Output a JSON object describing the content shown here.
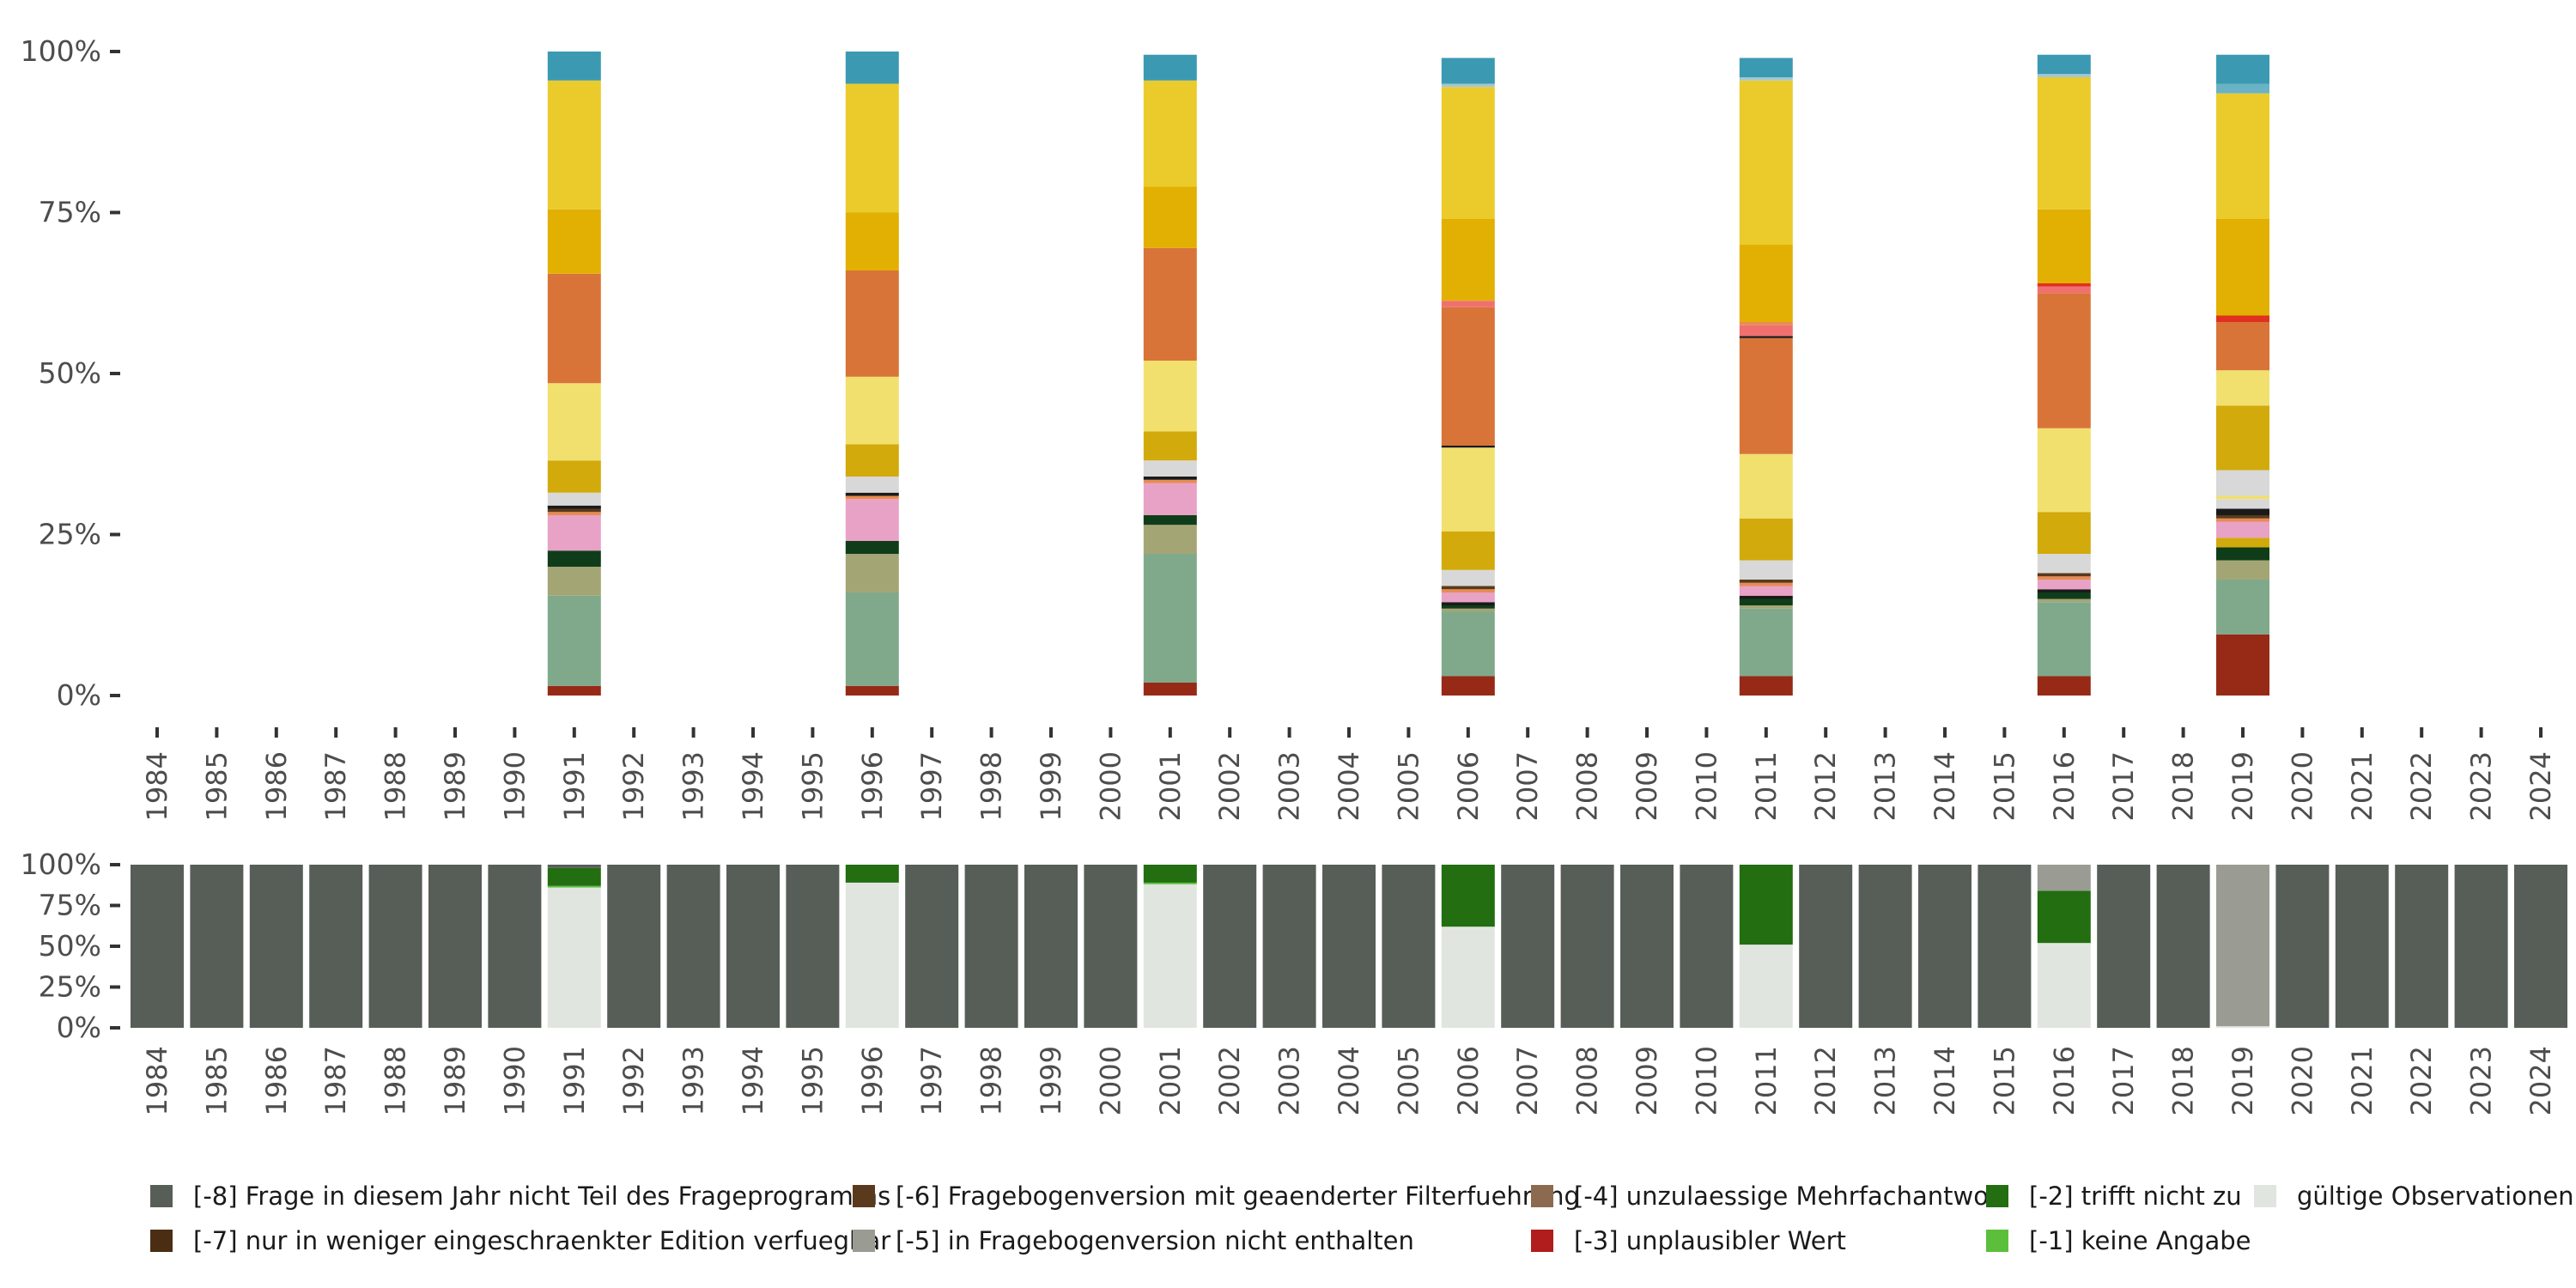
{
  "chart_data": [
    {
      "type": "bar",
      "stacked": true,
      "title": "",
      "xlabel": "",
      "ylabel": "",
      "ylim": [
        0,
        100
      ],
      "ytick_labels": [
        "0%",
        "25%",
        "50%",
        "75%",
        "100%"
      ],
      "ytick_values": [
        0,
        25,
        50,
        75,
        100
      ],
      "categories": [
        "1984",
        "1985",
        "1986",
        "1987",
        "1988",
        "1989",
        "1990",
        "1991",
        "1992",
        "1993",
        "1994",
        "1995",
        "1996",
        "1997",
        "1998",
        "1999",
        "2000",
        "2001",
        "2002",
        "2003",
        "2004",
        "2005",
        "2006",
        "2007",
        "2008",
        "2009",
        "2010",
        "2011",
        "2012",
        "2013",
        "2014",
        "2015",
        "2016",
        "2017",
        "2018",
        "2019",
        "2020",
        "2021",
        "2022",
        "2023",
        "2024"
      ],
      "note": "Distribution of valid answer categories (stacked from bottom). Segment colours listed bottom to top; values in percent.",
      "bars": [
        {
          "year": "1991",
          "segments": [
            {
              "color": "#962a17",
              "value": 1.5
            },
            {
              "color": "#80a98c",
              "value": 14
            },
            {
              "color": "#a4a575",
              "value": 4.5
            },
            {
              "color": "#0f3d1a",
              "value": 2.5
            },
            {
              "color": "#e8a2c6",
              "value": 5.5
            },
            {
              "color": "#e98b51",
              "value": 0.5
            },
            {
              "color": "#5a3a1d",
              "value": 0.5
            },
            {
              "color": "#1a1a1a",
              "value": 0.5
            },
            {
              "color": "#d8d8d8",
              "value": 2
            },
            {
              "color": "#d2aa0b",
              "value": 5
            },
            {
              "color": "#f1e06e",
              "value": 12
            },
            {
              "color": "#d97438",
              "value": 17
            },
            {
              "color": "#e2b003",
              "value": 10
            },
            {
              "color": "#ebcb2c",
              "value": 20
            },
            {
              "color": "#3b9ab2",
              "value": 4.5
            }
          ]
        },
        {
          "year": "1996",
          "segments": [
            {
              "color": "#962a17",
              "value": 1.5
            },
            {
              "color": "#80a98c",
              "value": 14.5
            },
            {
              "color": "#a4a575",
              "value": 6
            },
            {
              "color": "#0f3d1a",
              "value": 2
            },
            {
              "color": "#e8a2c6",
              "value": 6.5
            },
            {
              "color": "#e98b51",
              "value": 0.5
            },
            {
              "color": "#1a1a1a",
              "value": 0.5
            },
            {
              "color": "#d8d8d8",
              "value": 2.5
            },
            {
              "color": "#d2aa0b",
              "value": 5
            },
            {
              "color": "#f1e06e",
              "value": 10.5
            },
            {
              "color": "#d97438",
              "value": 16.5
            },
            {
              "color": "#e2b003",
              "value": 9
            },
            {
              "color": "#ebcb2c",
              "value": 20
            },
            {
              "color": "#3b9ab2",
              "value": 5
            }
          ]
        },
        {
          "year": "2001",
          "segments": [
            {
              "color": "#962a17",
              "value": 2
            },
            {
              "color": "#80a98c",
              "value": 20
            },
            {
              "color": "#a4a575",
              "value": 4.5
            },
            {
              "color": "#0f3d1a",
              "value": 1.5
            },
            {
              "color": "#e8a2c6",
              "value": 5
            },
            {
              "color": "#e98b51",
              "value": 0.5
            },
            {
              "color": "#1a1a1a",
              "value": 0.5
            },
            {
              "color": "#d8d8d8",
              "value": 2.5
            },
            {
              "color": "#d2aa0b",
              "value": 4.5
            },
            {
              "color": "#f1e06e",
              "value": 11
            },
            {
              "color": "#d97438",
              "value": 17.5
            },
            {
              "color": "#e2b003",
              "value": 9.5
            },
            {
              "color": "#ebcb2c",
              "value": 16.5
            },
            {
              "color": "#3b9ab2",
              "value": 4
            }
          ]
        },
        {
          "year": "2006",
          "segments": [
            {
              "color": "#962a17",
              "value": 3
            },
            {
              "color": "#80a98c",
              "value": 10
            },
            {
              "color": "#a4a575",
              "value": 0.5
            },
            {
              "color": "#0f3d1a",
              "value": 0.5
            },
            {
              "color": "#1a1a1a",
              "value": 0.5
            },
            {
              "color": "#e8a2c6",
              "value": 1.5
            },
            {
              "color": "#e98b51",
              "value": 0.5
            },
            {
              "color": "#5a3a1d",
              "value": 0.5
            },
            {
              "color": "#d8d8d8",
              "value": 2.5
            },
            {
              "color": "#d2aa0b",
              "value": 6
            },
            {
              "color": "#f1e06e",
              "value": 13
            },
            {
              "color": "#1a1a1a",
              "value": 0.3
            },
            {
              "color": "#d97438",
              "value": 21.5
            },
            {
              "color": "#f07070",
              "value": 1
            },
            {
              "color": "#e2b003",
              "value": 12.7
            },
            {
              "color": "#ebcb2c",
              "value": 20.5
            },
            {
              "color": "#a4c8d0",
              "value": 0.5
            },
            {
              "color": "#3b9ab2",
              "value": 4
            }
          ]
        },
        {
          "year": "2011",
          "segments": [
            {
              "color": "#962a17",
              "value": 3
            },
            {
              "color": "#80a98c",
              "value": 10.5
            },
            {
              "color": "#a4a575",
              "value": 0.5
            },
            {
              "color": "#0f3d1a",
              "value": 1
            },
            {
              "color": "#1a1a1a",
              "value": 0.5
            },
            {
              "color": "#e8a2c6",
              "value": 1.5
            },
            {
              "color": "#e98b51",
              "value": 0.5
            },
            {
              "color": "#5a3a1d",
              "value": 0.5
            },
            {
              "color": "#d8d8d8",
              "value": 3
            },
            {
              "color": "#d2aa0b",
              "value": 6.5
            },
            {
              "color": "#f1e06e",
              "value": 10
            },
            {
              "color": "#d97438",
              "value": 18
            },
            {
              "color": "#1a1a1a",
              "value": 0.3
            },
            {
              "color": "#f07070",
              "value": 1.7
            },
            {
              "color": "#e98b51",
              "value": 0.5
            },
            {
              "color": "#e2b003",
              "value": 12
            },
            {
              "color": "#ebcb2c",
              "value": 25.5
            },
            {
              "color": "#a4c8d0",
              "value": 0.5
            },
            {
              "color": "#3b9ab2",
              "value": 3
            }
          ]
        },
        {
          "year": "2016",
          "segments": [
            {
              "color": "#962a17",
              "value": 3
            },
            {
              "color": "#80a98c",
              "value": 11.5
            },
            {
              "color": "#a4a575",
              "value": 0.5
            },
            {
              "color": "#0f3d1a",
              "value": 1
            },
            {
              "color": "#1a1a1a",
              "value": 0.5
            },
            {
              "color": "#e8a2c6",
              "value": 1.5
            },
            {
              "color": "#e98b51",
              "value": 0.5
            },
            {
              "color": "#5a3a1d",
              "value": 0.5
            },
            {
              "color": "#d8d8d8",
              "value": 3
            },
            {
              "color": "#d2aa0b",
              "value": 6.5
            },
            {
              "color": "#f1e06e",
              "value": 13
            },
            {
              "color": "#d97438",
              "value": 21
            },
            {
              "color": "#f07070",
              "value": 1
            },
            {
              "color": "#e03020",
              "value": 0.5
            },
            {
              "color": "#e2b003",
              "value": 11.5
            },
            {
              "color": "#ebcb2c",
              "value": 20.5
            },
            {
              "color": "#a4c8d0",
              "value": 0.5
            },
            {
              "color": "#3b9ab2",
              "value": 3
            }
          ]
        },
        {
          "year": "2019",
          "segments": [
            {
              "color": "#962a17",
              "value": 9.5
            },
            {
              "color": "#80a98c",
              "value": 8.5
            },
            {
              "color": "#a4a575",
              "value": 3
            },
            {
              "color": "#0f3d1a",
              "value": 2
            },
            {
              "color": "#d2aa0b",
              "value": 1.5
            },
            {
              "color": "#e8a2c6",
              "value": 2.5
            },
            {
              "color": "#e98b51",
              "value": 0.5
            },
            {
              "color": "#5a3a1d",
              "value": 0.5
            },
            {
              "color": "#1a1a1a",
              "value": 1
            },
            {
              "color": "#d8d8d8",
              "value": 1.5
            },
            {
              "color": "#f1e06e",
              "value": 0.5
            },
            {
              "color": "#d8d8d8",
              "value": 4
            },
            {
              "color": "#d2aa0b",
              "value": 10
            },
            {
              "color": "#f1e06e",
              "value": 5.5
            },
            {
              "color": "#d97438",
              "value": 7.5
            },
            {
              "color": "#e03020",
              "value": 1
            },
            {
              "color": "#e2b003",
              "value": 15
            },
            {
              "color": "#ebcb2c",
              "value": 19.5
            },
            {
              "color": "#6ab3c5",
              "value": 1.5
            },
            {
              "color": "#3b9ab2",
              "value": 4.5
            }
          ]
        }
      ]
    },
    {
      "type": "bar",
      "stacked": true,
      "title": "",
      "xlabel": "",
      "ylabel": "",
      "ylim": [
        0,
        100
      ],
      "ytick_labels": [
        "0%",
        "25%",
        "50%",
        "75%",
        "100%"
      ],
      "ytick_values": [
        0,
        25,
        50,
        75,
        100
      ],
      "categories": [
        "1984",
        "1985",
        "1986",
        "1987",
        "1988",
        "1989",
        "1990",
        "1991",
        "1992",
        "1993",
        "1994",
        "1995",
        "1996",
        "1997",
        "1998",
        "1999",
        "2000",
        "2001",
        "2002",
        "2003",
        "2004",
        "2005",
        "2006",
        "2007",
        "2008",
        "2009",
        "2010",
        "2011",
        "2012",
        "2013",
        "2014",
        "2015",
        "2016",
        "2017",
        "2018",
        "2019",
        "2020",
        "2021",
        "2022",
        "2023",
        "2024"
      ],
      "series": [
        {
          "name": "gültige Observationen",
          "color": "#e1e5df",
          "values": [
            0,
            0,
            0,
            0,
            0,
            0,
            0,
            86,
            0,
            0,
            0,
            0,
            89,
            0,
            0,
            0,
            0,
            88,
            0,
            0,
            0,
            0,
            62,
            0,
            0,
            0,
            0,
            51,
            0,
            0,
            0,
            0,
            52,
            0,
            0,
            1,
            0,
            0,
            0,
            0,
            0
          ]
        },
        {
          "name": "[-1] keine Angabe",
          "color": "#5bbf3c",
          "values": [
            0,
            0,
            0,
            0,
            0,
            0,
            0,
            1,
            0,
            0,
            0,
            0,
            0,
            0,
            0,
            0,
            0,
            1,
            0,
            0,
            0,
            0,
            0,
            0,
            0,
            0,
            0,
            0,
            0,
            0,
            0,
            0,
            0,
            0,
            0,
            0,
            0,
            0,
            0,
            0,
            0
          ]
        },
        {
          "name": "[-2] trifft nicht zu",
          "color": "#226e11",
          "values": [
            0,
            0,
            0,
            0,
            0,
            0,
            0,
            11,
            0,
            0,
            0,
            0,
            11,
            0,
            0,
            0,
            0,
            11,
            0,
            0,
            0,
            0,
            38,
            0,
            0,
            0,
            0,
            49,
            0,
            0,
            0,
            0,
            32,
            0,
            0,
            0,
            0,
            0,
            0,
            0,
            0
          ]
        },
        {
          "name": "[-5] in Fragebogenversion nicht enthalten",
          "color": "#9a9c93",
          "values": [
            0,
            0,
            0,
            0,
            0,
            0,
            0,
            0,
            0,
            0,
            0,
            0,
            0,
            0,
            0,
            0,
            0,
            0,
            0,
            0,
            0,
            0,
            0,
            0,
            0,
            0,
            0,
            0,
            0,
            0,
            0,
            0,
            16,
            0,
            0,
            99,
            0,
            0,
            0,
            0,
            0
          ]
        },
        {
          "name": "[-8] Frage in diesem Jahr nicht Teil des Frageprogramms",
          "color": "#575d57",
          "values": [
            100,
            100,
            100,
            100,
            100,
            100,
            100,
            2,
            100,
            100,
            100,
            100,
            0,
            100,
            100,
            100,
            100,
            0,
            100,
            100,
            100,
            100,
            0,
            100,
            100,
            100,
            100,
            0,
            100,
            100,
            100,
            100,
            0,
            100,
            100,
            0,
            100,
            100,
            100,
            100,
            100
          ]
        }
      ]
    }
  ],
  "legend": {
    "items": [
      {
        "label": "[-8] Frage in diesem Jahr nicht Teil des Frageprogramms",
        "color": "#575d57"
      },
      {
        "label": "[-7] nur in weniger eingeschraenkter Edition verfuegbar",
        "color": "#4a2d12"
      },
      {
        "label": "[-6] Fragebogenversion mit geaenderter Filterfuehrung",
        "color": "#5a3a1d"
      },
      {
        "label": "[-5] in Fragebogenversion nicht enthalten",
        "color": "#9a9c93"
      },
      {
        "label": "[-4] unzulaessige Mehrfachantwort",
        "color": "#8c6a50"
      },
      {
        "label": "[-3] unplausibler Wert",
        "color": "#b11c1c"
      },
      {
        "label": "[-2] trifft nicht zu",
        "color": "#226e11"
      },
      {
        "label": "[-1] keine Angabe",
        "color": "#5bbf3c"
      },
      {
        "label": "gültige Observationen",
        "color": "#e1e5df"
      }
    ]
  }
}
